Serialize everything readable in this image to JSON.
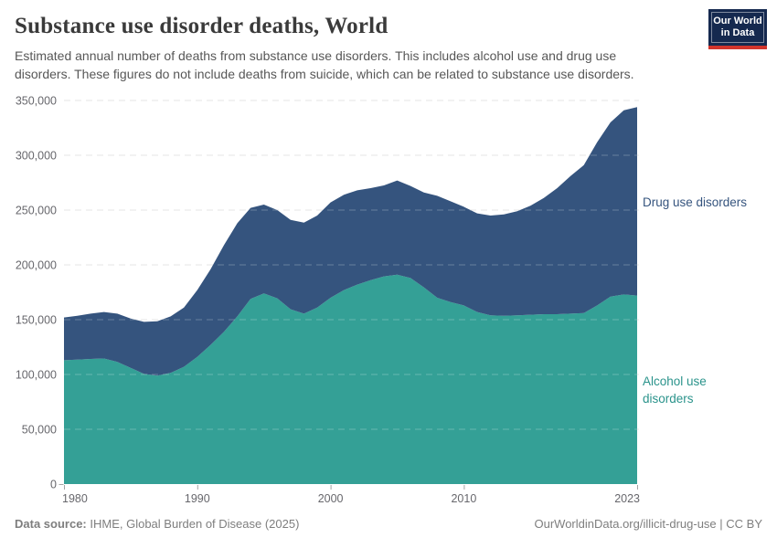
{
  "header": {
    "title": "Substance use disorder deaths, World",
    "subtitle": "Estimated annual number of deaths from substance use disorders. This includes alcohol use and drug use disorders. These figures do not include deaths from suicide, which can be related to substance use disorders.",
    "logo": {
      "line1": "Our World",
      "line2": "in Data"
    }
  },
  "chart_data": {
    "type": "area",
    "stacked": true,
    "title": "Substance use disorder deaths, World",
    "xlabel": "",
    "ylabel": "",
    "grid": "dashed-horizontal",
    "legend_position": "right-inline",
    "ylim": [
      0,
      350000
    ],
    "yticks": [
      0,
      50000,
      100000,
      150000,
      200000,
      250000,
      300000,
      350000
    ],
    "xticks": [
      1980,
      1990,
      2000,
      2010,
      2023
    ],
    "x": [
      1980,
      1981,
      1982,
      1983,
      1984,
      1985,
      1986,
      1987,
      1988,
      1989,
      1990,
      1991,
      1992,
      1993,
      1994,
      1995,
      1996,
      1997,
      1998,
      1999,
      2000,
      2001,
      2002,
      2003,
      2004,
      2005,
      2006,
      2007,
      2008,
      2009,
      2010,
      2011,
      2012,
      2013,
      2014,
      2015,
      2016,
      2017,
      2018,
      2019,
      2020,
      2021,
      2022,
      2023
    ],
    "series": [
      {
        "name": "Alcohol use disorders",
        "color": "#34a096",
        "label_color": "#2a938b",
        "values": [
          113000,
          113500,
          114200,
          114600,
          111500,
          106000,
          100500,
          99000,
          101500,
          107000,
          116000,
          127000,
          139000,
          153000,
          169000,
          174000,
          169500,
          159500,
          155500,
          161000,
          170000,
          177000,
          182000,
          186000,
          189500,
          191000,
          188000,
          179500,
          170000,
          166000,
          163000,
          157000,
          154000,
          153500,
          154000,
          154500,
          155000,
          155000,
          155500,
          156000,
          163000,
          171000,
          173000,
          172000
        ]
      },
      {
        "name": "Drug use disorders",
        "color": "#35547e",
        "label_color": "#35547e",
        "values": [
          39000,
          40000,
          41300,
          42400,
          44000,
          45000,
          47500,
          49500,
          51500,
          54000,
          61000,
          69000,
          79000,
          85000,
          83000,
          81000,
          80500,
          81500,
          83000,
          84000,
          87000,
          87000,
          86000,
          84000,
          83000,
          86000,
          84000,
          86500,
          93000,
          92000,
          90000,
          90000,
          91000,
          92500,
          95000,
          99500,
          106000,
          115000,
          125500,
          135000,
          149000,
          159000,
          168000,
          172000
        ]
      }
    ]
  },
  "footer": {
    "source_label": "Data source:",
    "source_text": "IHME, Global Burden of Disease (2025)",
    "license_text": "OurWorldinData.org/illicit-drug-use | CC BY"
  }
}
